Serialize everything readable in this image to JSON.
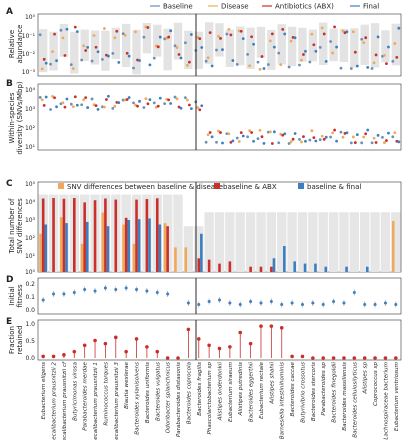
{
  "legend_top": {
    "placement": "top",
    "items": [
      {
        "label": "Baseline",
        "color": "#6c8fb8"
      },
      {
        "label": "Disease",
        "color": "#f0a95a"
      },
      {
        "label": "Antibiotics (ABX)",
        "color": "#c9302c"
      },
      {
        "label": "Final",
        "color": "#3b7fc0"
      }
    ]
  },
  "legend_c": {
    "items": [
      {
        "label": "SNV differences between baseline & disease",
        "color": "#f0a95a"
      },
      {
        "label": "baseline & ABX",
        "color": "#c9302c"
      },
      {
        "label": "baseline & final",
        "color": "#3b7fc0"
      }
    ]
  },
  "panels": {
    "A": {
      "letter": "A",
      "ylabel": [
        "Relative",
        "abundance"
      ],
      "ticks": [
        "10⁰",
        "10⁻¹",
        "10⁻²",
        "10⁻³"
      ]
    },
    "B": {
      "letter": "B",
      "ylabel": [
        "Within-species",
        "diversity (SNVs/Mbp)"
      ],
      "ticks": [
        "10⁴",
        "10³",
        "10²",
        "10¹"
      ]
    },
    "C": {
      "letter": "C",
      "ylabel": [
        "Total number of",
        "SNV differences"
      ],
      "ticks": [
        "10⁵",
        "10⁴",
        "10³",
        "10²",
        "10¹",
        "10⁰"
      ]
    },
    "D": {
      "letter": "D",
      "ylabel": [
        "Initial",
        "fitness"
      ],
      "ticks": [
        "0.2",
        "0.1",
        "0.0"
      ]
    },
    "E": {
      "letter": "E",
      "ylabel": [
        "Fraction",
        "retained"
      ],
      "ticks": [
        "1.0",
        "0.5",
        "0.0"
      ]
    }
  },
  "chart_data": {
    "type": "bar",
    "divider_after_index": 15,
    "categories": [
      "Eubacterium eligens",
      "Faecalibacterium prausnitzii 2",
      "Faecalibacterium prausnitzii cf",
      "Butyricimonas virosa",
      "Parabacteroides merdae",
      "Faecalibacterium prausnitzii 1",
      "Ruminococcus torques",
      "Faecalibacterium prausnitzii 3",
      "Blautia wexlerae",
      "Bacteroides xylanisolvens",
      "Bacteroides uniformis",
      "Bacteroides vulgatus",
      "Odoribacter splanchnicus",
      "Parabacteroides distasonis",
      "Bacteroides coprocola",
      "Bacteroides fragilis",
      "Phascolarctobacterium sp",
      "Alistipes onderdonkii",
      "Eubacterium siraeum",
      "Alistipes putredinis",
      "Bacteroides eggerthii",
      "Eubacterium rectale",
      "Alistipes shahii",
      "Barnesiella intestinihominis",
      "Bacteroides caccae",
      "Butyrivibrio crossotus",
      "Bacteroides stercoris",
      "Parabacteroides sp",
      "Bacteroides finegoldii",
      "Bacteroides massiliensis",
      "Bacteroides cellulosilyticus",
      "Alistipes sp",
      "Coprococcus sp",
      "Lachnospiraceae bacterium",
      "Eubacterium ventriosum"
    ],
    "panel_C_snv_differences": {
      "ylog": true,
      "ylim": [
        1,
        100000
      ],
      "series": [
        {
          "name": "SNV differences between baseline & disease",
          "color": "#f0a95a",
          "values": [
            150,
            0,
            1300,
            0,
            40,
            0,
            2400,
            0,
            500,
            40,
            0,
            0,
            600,
            25,
            25,
            0,
            0,
            0,
            0,
            0,
            0,
            0,
            0,
            0,
            0,
            0,
            0,
            0,
            0,
            0,
            0,
            0,
            0,
            0,
            800
          ]
        },
        {
          "name": "baseline & ABX",
          "color": "#c9302c",
          "values": [
            15000,
            16000,
            14500,
            16000,
            9000,
            12000,
            15000,
            13000,
            1200,
            13000,
            14000,
            15500,
            400,
            0,
            0,
            6,
            5,
            3,
            4,
            0,
            2,
            2,
            2,
            0,
            0,
            0,
            0,
            0,
            0,
            0,
            0,
            0,
            0,
            0,
            0
          ]
        },
        {
          "name": "baseline & final",
          "color": "#3b7fc0",
          "values": [
            500,
            0,
            600,
            0,
            700,
            0,
            400,
            0,
            900,
            1000,
            1100,
            500,
            0,
            0,
            0,
            150,
            0,
            0,
            0,
            0,
            0,
            0,
            6,
            30,
            4,
            3,
            3,
            2,
            0,
            2,
            0,
            2,
            0,
            0,
            0
          ]
        }
      ]
    },
    "panel_E_fraction_retained": {
      "ylim": [
        0,
        1.1
      ],
      "values": [
        0.05,
        0.05,
        0.1,
        0.2,
        0.4,
        0.55,
        0.45,
        0.65,
        0.2,
        0.6,
        0.35,
        0.2,
        0,
        0,
        0.9,
        0.6,
        0.4,
        0.3,
        0.35,
        0.8,
        0.45,
        1.0,
        1.0,
        0.95,
        0.05,
        0.05,
        0,
        0,
        0,
        0,
        0,
        0,
        0,
        0,
        0
      ]
    },
    "panel_D_initial_fitness": {
      "ylim": [
        0,
        0.2
      ],
      "values": [
        0.08,
        0.12,
        0.12,
        0.13,
        0.15,
        0.14,
        0.16,
        0.15,
        0.16,
        0.15,
        0.14,
        0.13,
        0.12,
        0,
        0.06,
        0.05,
        0.07,
        0.08,
        0.06,
        0.05,
        0.07,
        0.06,
        0.07,
        0.05,
        0.06,
        0.05,
        0.06,
        0.05,
        0.07,
        0.06,
        0.13,
        0.05,
        0.05,
        0.06,
        0.05
      ]
    }
  }
}
